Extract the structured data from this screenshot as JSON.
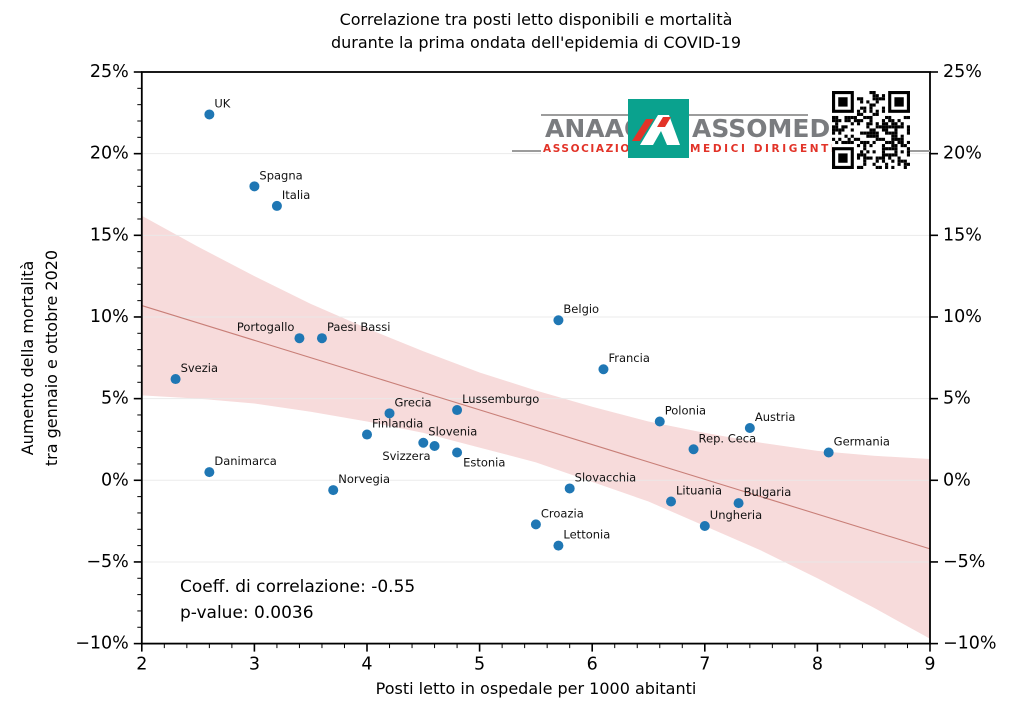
{
  "figure": {
    "title_line1": "Correlazione tra posti letto disponibili e mortalità",
    "title_line2": "durante la prima ondata dell'epidemia di COVID-19",
    "xlabel": "Posti letto in ospedale per 1000 abitanti",
    "ylabel_line1": "Aumento della mortalità",
    "ylabel_line2": "tra gennaio e ottobre 2020",
    "annotation_line1": "Coeff. di correlazione: -0.55",
    "annotation_line2": "p-value: 0.0036"
  },
  "logo": {
    "word_left": "ANAAO",
    "word_right": "ASSOMED",
    "sub_left": "ASSOCIAZIONE",
    "sub_right": "MEDICI DIRIGENTI",
    "teal": "#0aa28e",
    "gray": "#7a7c7f",
    "red": "#e23328",
    "emblem": "stylized-A-icon",
    "qr": "qr-code-icon"
  },
  "chart_data": {
    "type": "scatter",
    "title": "Correlazione tra posti letto disponibili e mortalità durante la prima ondata dell'epidemia di COVID-19",
    "xlabel": "Posti letto in ospedale per 1000 abitanti",
    "ylabel": "Aumento della mortalità tra gennaio e ottobre 2020",
    "xlim": [
      2,
      9
    ],
    "ylim": [
      -10,
      25
    ],
    "x_ticks": [
      2,
      3,
      4,
      5,
      6,
      7,
      8,
      9
    ],
    "x_minor_step": 0.2,
    "y_ticks": [
      -10,
      -5,
      0,
      5,
      10,
      15,
      20,
      25
    ],
    "y_tick_suffix": "%",
    "y_minor_step": 1,
    "grid": "horizontal-only",
    "legend": "none",
    "correlation_coefficient": -0.55,
    "p_value": 0.0036,
    "point_color": "#1f77b4",
    "band_color": "#f7dbdb",
    "trend_color": "#c4766e",
    "grid_color": "#e9e9e9",
    "points": [
      {
        "label": "UK",
        "x": 2.6,
        "y": 22.4
      },
      {
        "label": "Spagna",
        "x": 3.0,
        "y": 18.0
      },
      {
        "label": "Italia",
        "x": 3.2,
        "y": 16.8
      },
      {
        "label": "Belgio",
        "x": 5.7,
        "y": 9.8
      },
      {
        "label": "Portogallo",
        "x": 3.4,
        "y": 8.7,
        "lp": "left"
      },
      {
        "label": "Paesi Bassi",
        "x": 3.6,
        "y": 8.7
      },
      {
        "label": "Francia",
        "x": 6.1,
        "y": 6.8
      },
      {
        "label": "Svezia",
        "x": 2.3,
        "y": 6.2
      },
      {
        "label": "Lussemburgo",
        "x": 4.8,
        "y": 4.3
      },
      {
        "label": "Grecia",
        "x": 4.2,
        "y": 4.1
      },
      {
        "label": "Polonia",
        "x": 6.6,
        "y": 3.6
      },
      {
        "label": "Austria",
        "x": 7.4,
        "y": 3.2
      },
      {
        "label": "Finlandia",
        "x": 4.0,
        "y": 2.8
      },
      {
        "label": "Slovenia",
        "x": 4.5,
        "y": 2.3
      },
      {
        "label": "Svizzera",
        "x": 4.6,
        "y": 2.1,
        "lp": "below-left"
      },
      {
        "label": "Rep. Ceca",
        "x": 6.9,
        "y": 1.9
      },
      {
        "label": "Estonia",
        "x": 4.8,
        "y": 1.7,
        "lp": "below-right"
      },
      {
        "label": "Germania",
        "x": 8.1,
        "y": 1.7
      },
      {
        "label": "Danimarca",
        "x": 2.6,
        "y": 0.5
      },
      {
        "label": "Slovacchia",
        "x": 5.8,
        "y": -0.5
      },
      {
        "label": "Norvegia",
        "x": 3.7,
        "y": -0.6
      },
      {
        "label": "Lituania",
        "x": 6.7,
        "y": -1.3
      },
      {
        "label": "Bulgaria",
        "x": 7.3,
        "y": -1.4
      },
      {
        "label": "Croazia",
        "x": 5.5,
        "y": -2.7
      },
      {
        "label": "Ungheria",
        "x": 7.0,
        "y": -2.8
      },
      {
        "label": "Lettonia",
        "x": 5.7,
        "y": -4.0
      }
    ],
    "trend_line": {
      "x1": 2,
      "y1": 10.7,
      "x2": 9,
      "y2": -4.2
    },
    "ci_band": {
      "x": [
        2,
        2.5,
        3,
        3.5,
        4,
        4.5,
        5,
        5.5,
        6,
        6.5,
        7,
        7.5,
        8,
        8.5,
        9
      ],
      "top": [
        16.2,
        14.3,
        12.5,
        10.8,
        9.3,
        7.9,
        6.6,
        5.5,
        4.5,
        3.6,
        2.9,
        2.3,
        1.8,
        1.5,
        1.3
      ],
      "bottom": [
        5.2,
        5.0,
        4.7,
        4.2,
        3.6,
        2.9,
        2.0,
        1.1,
        -0.1,
        -1.3,
        -2.8,
        -4.3,
        -6.0,
        -7.8,
        -9.7
      ]
    }
  }
}
